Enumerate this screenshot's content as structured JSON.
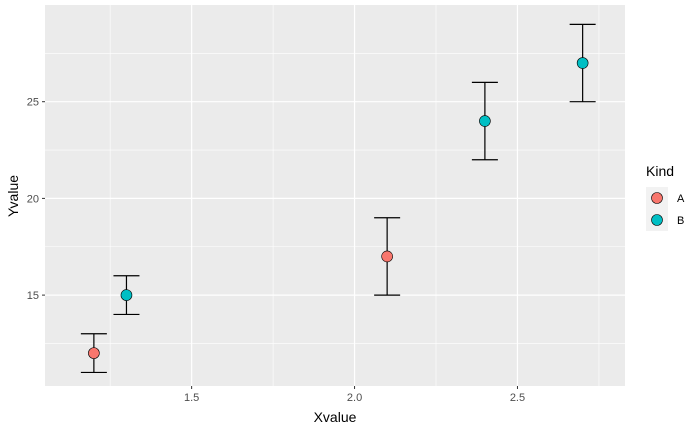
{
  "chart_data": {
    "type": "scatter",
    "xlabel": "Xvalue",
    "ylabel": "Yvalue",
    "xlim": [
      1.05,
      2.83
    ],
    "ylim": [
      10.3,
      30.0
    ],
    "x_ticks": [
      1.5,
      2.0,
      2.5
    ],
    "x_tick_labels": [
      "1.5",
      "2.0",
      "2.5"
    ],
    "y_ticks": [
      15,
      20,
      25
    ],
    "y_tick_labels": [
      "15",
      "20",
      "25"
    ],
    "grid": true,
    "legend": {
      "title": "Kind",
      "position": "right",
      "entries": [
        {
          "label": "A",
          "color": "#F8766D"
        },
        {
          "label": "B",
          "color": "#00BFC4"
        }
      ]
    },
    "series": [
      {
        "name": "A",
        "color": "#F8766D",
        "points": [
          {
            "x": 1.2,
            "y": 12,
            "ymin": 11,
            "ymax": 13
          },
          {
            "x": 2.1,
            "y": 17,
            "ymin": 15,
            "ymax": 19
          }
        ]
      },
      {
        "name": "B",
        "color": "#00BFC4",
        "points": [
          {
            "x": 1.3,
            "y": 15,
            "ymin": 14,
            "ymax": 16
          },
          {
            "x": 2.4,
            "y": 24,
            "ymin": 22,
            "ymax": 26
          },
          {
            "x": 2.7,
            "y": 27,
            "ymin": 25,
            "ymax": 29
          }
        ]
      }
    ]
  }
}
